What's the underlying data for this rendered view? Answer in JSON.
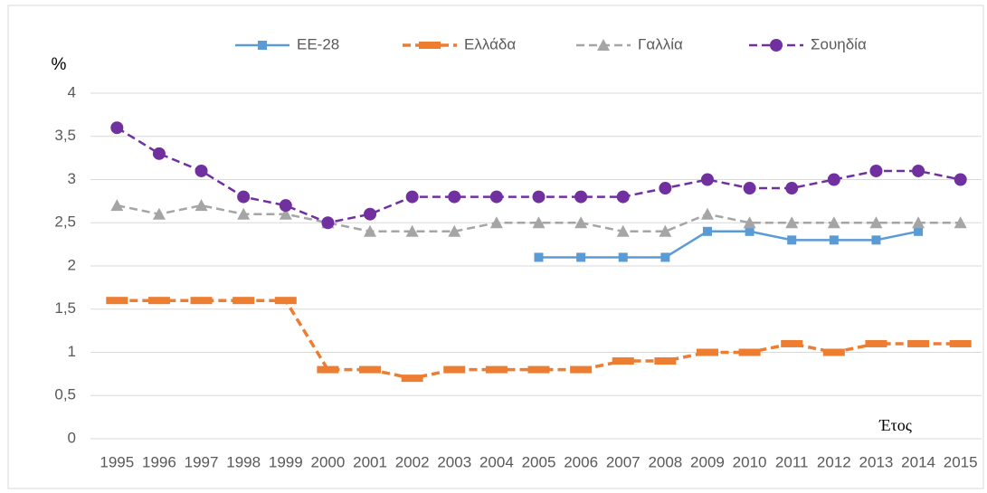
{
  "chart_data": {
    "type": "line",
    "y_label": "%",
    "x_label": "Έτος",
    "categories": [
      "1995",
      "1996",
      "1997",
      "1998",
      "1999",
      "2000",
      "2001",
      "2002",
      "2003",
      "2004",
      "2005",
      "2006",
      "2007",
      "2008",
      "2009",
      "2010",
      "2011",
      "2012",
      "2013",
      "2014",
      "2015"
    ],
    "series": [
      {
        "name": "ΕΕ-28",
        "color": "#5b9bd5",
        "dashed": false,
        "marker": "square",
        "values": [
          null,
          null,
          null,
          null,
          null,
          null,
          null,
          null,
          null,
          null,
          2.1,
          2.1,
          2.1,
          2.1,
          2.4,
          2.4,
          2.3,
          2.3,
          2.3,
          2.4,
          null
        ]
      },
      {
        "name": "Ελλάδα",
        "color": "#ed7d31",
        "dashed": true,
        "marker": "dash",
        "values": [
          1.6,
          1.6,
          1.6,
          1.6,
          1.6,
          0.8,
          0.8,
          0.7,
          0.8,
          0.8,
          0.8,
          0.8,
          0.9,
          0.9,
          1.0,
          1.0,
          1.1,
          1.0,
          1.1,
          1.1,
          1.1
        ]
      },
      {
        "name": "Γαλλία",
        "color": "#a5a5a5",
        "dashed": true,
        "marker": "triangle",
        "values": [
          2.7,
          2.6,
          2.7,
          2.6,
          2.6,
          2.5,
          2.4,
          2.4,
          2.4,
          2.5,
          2.5,
          2.5,
          2.4,
          2.4,
          2.6,
          2.5,
          2.5,
          2.5,
          2.5,
          2.5,
          2.5
        ]
      },
      {
        "name": "Σουηδία",
        "color": "#7030a0",
        "dashed": true,
        "marker": "circle",
        "values": [
          3.6,
          3.3,
          3.1,
          2.8,
          2.7,
          2.5,
          2.6,
          2.8,
          2.8,
          2.8,
          2.8,
          2.8,
          2.8,
          2.9,
          3.0,
          2.9,
          2.9,
          3.0,
          3.1,
          3.1,
          3.0
        ]
      }
    ],
    "ylim": [
      0,
      4
    ],
    "yticks": [
      0,
      {
        "value": 0.5,
        "label": "0,5"
      },
      1,
      {
        "value": 1.5,
        "label": "1,5"
      },
      2,
      {
        "value": 2.5,
        "label": "2,5"
      },
      3,
      {
        "value": 3.5,
        "label": "3,5"
      },
      4
    ],
    "grid": true,
    "legend": "top"
  }
}
